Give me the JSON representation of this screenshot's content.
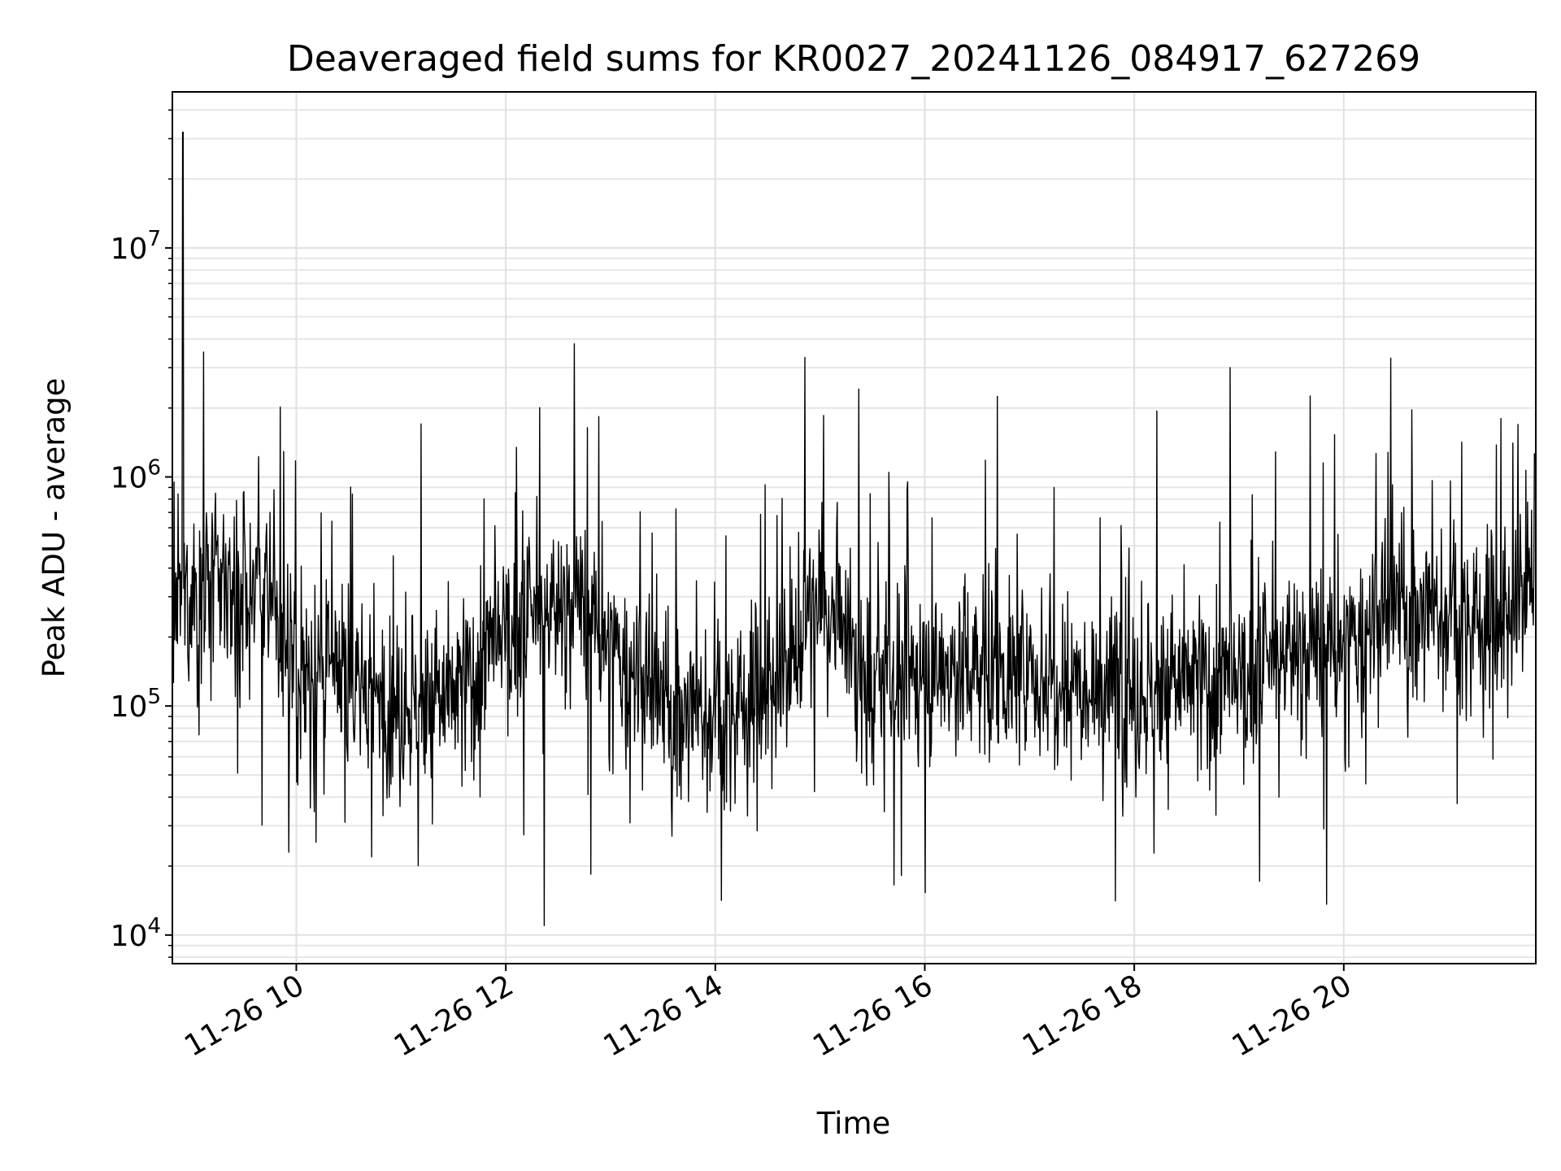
{
  "chart_data": {
    "type": "line",
    "title": "Deaveraged field sums for KR0027_20241126_084917_627269",
    "xlabel": "Time",
    "ylabel": "Peak ADU - average",
    "y_scale": "log",
    "grid": true,
    "x_axis_kind": "time",
    "x_tick_labels": [
      "11-26 10",
      "11-26 12",
      "11-26 14",
      "11-26 16",
      "11-26 18",
      "11-26 20"
    ],
    "xlim": [
      "2024-11-26 08:49",
      "2024-11-26 21:50"
    ],
    "ylim": [
      7500,
      48000
    ],
    "y_ticks": [
      {
        "value": 10000,
        "base": "10",
        "exp": "4"
      },
      {
        "value": 100000,
        "base": "10",
        "exp": "5"
      },
      {
        "value": 1000000,
        "base": "10",
        "exp": "6"
      },
      {
        "value": 10000000,
        "base": "10",
        "exp": "7"
      }
    ],
    "line_color": "#000000",
    "series": [
      {
        "x": [
          "2024-11-26 08:49",
          "2024-11-26 09:00",
          "2024-11-26 09:15",
          "2024-11-26 09:30",
          "2024-11-26 09:45",
          "2024-11-26 10:00",
          "2024-11-26 10:30",
          "2024-11-26 11:00",
          "2024-11-26 11:30",
          "2024-11-26 12:00",
          "2024-11-26 12:20",
          "2024-11-26 12:40",
          "2024-11-26 13:00",
          "2024-11-26 13:30",
          "2024-11-26 14:00",
          "2024-11-26 14:30",
          "2024-11-26 15:00",
          "2024-11-26 15:30",
          "2024-11-26 16:00",
          "2024-11-26 16:30",
          "2024-11-26 17:00",
          "2024-11-26 17:30",
          "2024-11-26 18:00",
          "2024-11-26 18:30",
          "2024-11-26 19:00",
          "2024-11-26 19:30",
          "2024-11-26 20:00",
          "2024-11-26 20:30",
          "2024-11-26 21:00",
          "2024-11-26 21:30",
          "2024-11-26 21:50"
        ],
        "values": [
          250000,
          300000,
          350000,
          320000,
          300000,
          140000,
          130000,
          100000,
          110000,
          200000,
          250000,
          300000,
          170000,
          100000,
          90000,
          120000,
          280000,
          120000,
          140000,
          150000,
          130000,
          140000,
          110000,
          130000,
          120000,
          180000,
          170000,
          270000,
          250000,
          230000,
          450000
        ]
      }
    ],
    "notable_points": [
      {
        "x": "2024-11-26 08:55",
        "y": 32000000
      },
      {
        "x": "2024-11-26 12:22",
        "y": 11000
      },
      {
        "x": "2024-11-26 18:55",
        "y": 3000000
      },
      {
        "x": "2024-11-26 20:27",
        "y": 3300000
      }
    ]
  }
}
